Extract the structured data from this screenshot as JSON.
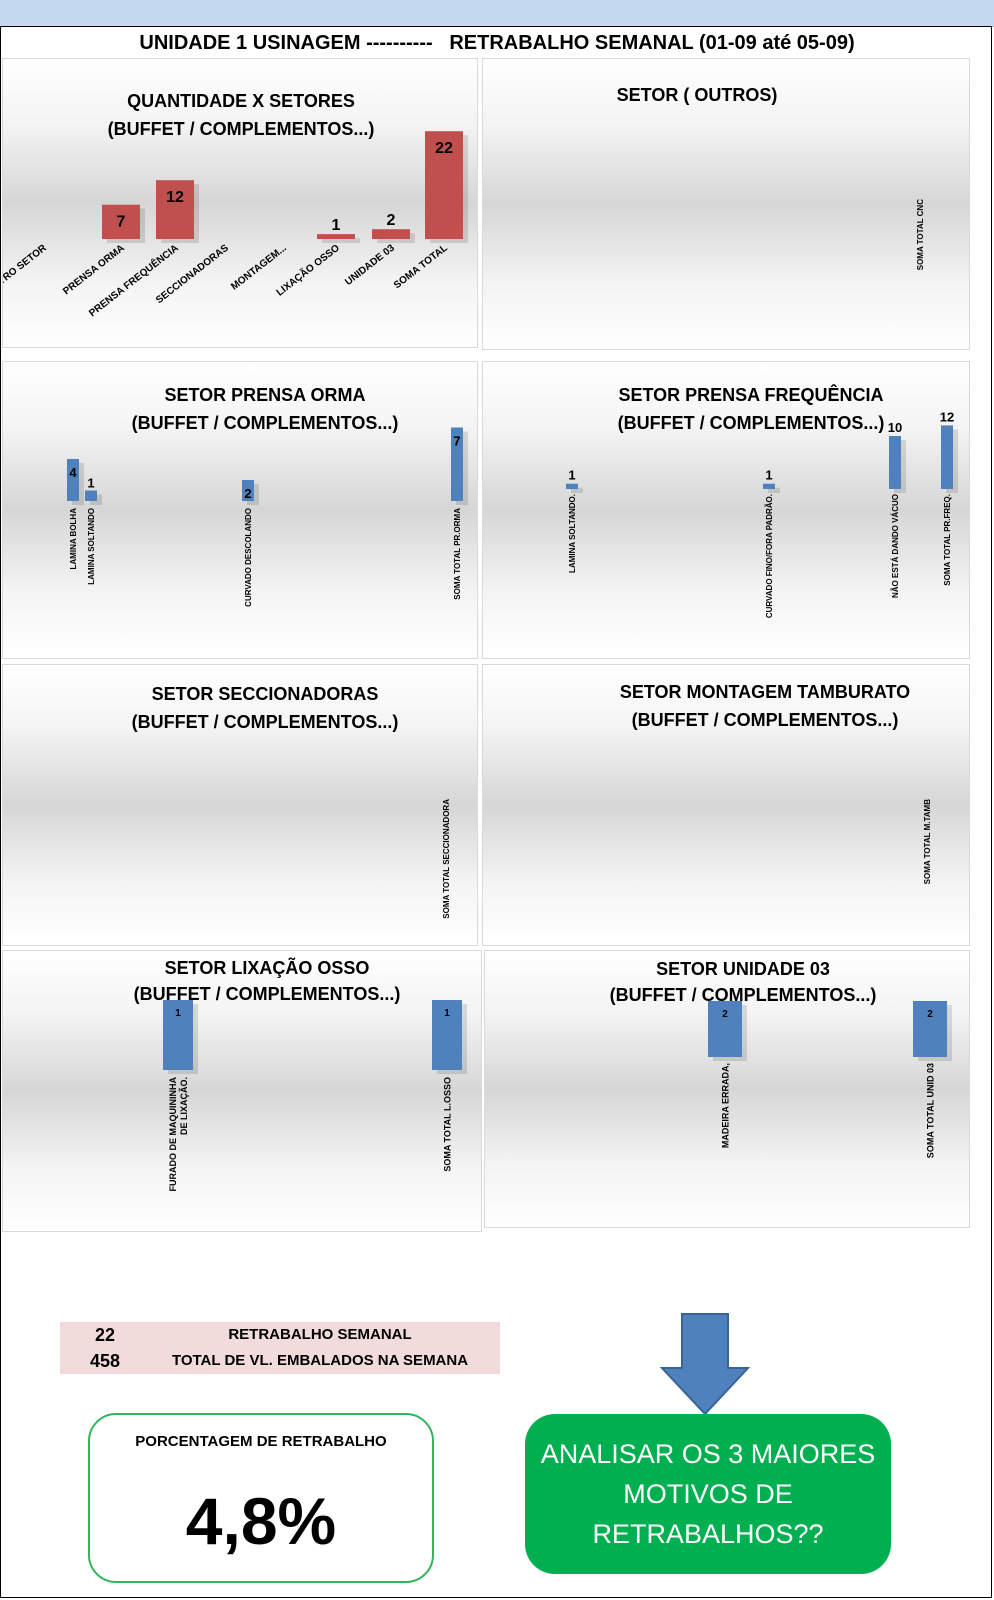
{
  "header": {
    "title": "UNIDADE 1 USINAGEM ----------   RETRABALHO SEMANAL (01-09 até 05-09)"
  },
  "colors": {
    "red_bar": "#c0504d",
    "blue_bar": "#4f81bd",
    "cta_green": "#00b050",
    "summary_bg": "#f2dcdb",
    "arrow": "#4f81bd"
  },
  "chart_data": [
    {
      "id": "quantidade_setores",
      "type": "bar",
      "title": [
        "QUANTIDADE X SETORES",
        "(BUFFET / COMPLEMENTOS...)"
      ],
      "categories": [
        "OUTRO SETOR",
        "PRENSA ORMA",
        "PRENSA FREQUÊNCIA",
        "SECCIONADORAS",
        "MONTAGEM...",
        "LIXAÇÃO OSSO",
        "UNIDADE 03",
        "SOMA TOTAL"
      ],
      "values": [
        null,
        7,
        12,
        null,
        null,
        1,
        2,
        22
      ],
      "data_labels": [
        "",
        "7",
        "12",
        "",
        "",
        "1",
        "2",
        "22"
      ],
      "color": "red"
    },
    {
      "id": "setor_outros",
      "type": "bar",
      "title": [
        "SETOR ( OUTROS)"
      ],
      "categories": [
        "SOMA TOTAL CNC"
      ],
      "values": [
        null
      ],
      "data_labels": [
        ""
      ],
      "color": "blue"
    },
    {
      "id": "setor_prensa_orma",
      "type": "bar",
      "title": [
        "SETOR PRENSA ORMA",
        "(BUFFET / COMPLEMENTOS...)"
      ],
      "categories": [
        "LAMINA BOLHA",
        "LAMINA SOLTANDO",
        "CURVADO DESCOLANDO",
        "SOMA TOTAL PR.ORMA"
      ],
      "values": [
        4,
        1,
        2,
        7
      ],
      "data_labels": [
        "4",
        "1",
        "2",
        "7"
      ],
      "color": "blue"
    },
    {
      "id": "setor_prensa_frequencia",
      "type": "bar",
      "title": [
        "SETOR PRENSA FREQUÊNCIA",
        "(BUFFET / COMPLEMENTOS...)"
      ],
      "categories": [
        "LAMINA SOLTANDO.",
        "CURVADO FINO/FORA PADRÃO.",
        "NÃO ESTÁ DANDO VÁCUO",
        "SOMA TOTAL PR.FREQ."
      ],
      "values": [
        1,
        1,
        10,
        12
      ],
      "data_labels": [
        "1",
        "1",
        "10",
        "12"
      ],
      "color": "blue"
    },
    {
      "id": "setor_seccionadoras",
      "type": "bar",
      "title": [
        "SETOR SECCIONADORAS",
        "(BUFFET / COMPLEMENTOS...)"
      ],
      "categories": [
        "SOMA TOTAL SECCIONADORA"
      ],
      "values": [
        null
      ],
      "data_labels": [
        ""
      ],
      "color": "blue"
    },
    {
      "id": "setor_montagem_tamburato",
      "type": "bar",
      "title": [
        "SETOR MONTAGEM TAMBURATO",
        "(BUFFET / COMPLEMENTOS...)"
      ],
      "categories": [
        "SOMA TOTAL M.TAMB"
      ],
      "values": [
        null
      ],
      "data_labels": [
        ""
      ],
      "color": "blue"
    },
    {
      "id": "setor_lixacao_osso",
      "type": "bar",
      "title": [
        "SETOR LIXAÇÃO OSSO",
        "(BUFFET / COMPLEMENTOS...)"
      ],
      "categories": [
        [
          "FURADO DE MAQUININHA",
          "DE LIXAÇÃO."
        ],
        [
          "SOMA TOTAL L.OSSO"
        ]
      ],
      "values": [
        1,
        1
      ],
      "data_labels": [
        "1",
        "1"
      ],
      "color": "blue"
    },
    {
      "id": "setor_unidade_03",
      "type": "bar",
      "title": [
        "SETOR UNIDADE 03",
        "(BUFFET / COMPLEMENTOS...)"
      ],
      "categories": [
        [
          "MADEIRA ERRADA,"
        ],
        [
          "SOMA TOTAL UNID 03"
        ]
      ],
      "values": [
        2,
        2
      ],
      "data_labels": [
        "2",
        "2"
      ],
      "color": "blue"
    }
  ],
  "summary": {
    "rows": [
      {
        "value": "22",
        "label": "RETRABALHO SEMANAL"
      },
      {
        "value": "458",
        "label": "TOTAL DE VL. EMBALADOS NA SEMANA"
      }
    ]
  },
  "percentage": {
    "label": "PORCENTAGEM DE RETRABALHO",
    "value": "4,8%"
  },
  "cta": {
    "lines": [
      "ANALISAR OS 3 MAIORES",
      "MOTIVOS DE",
      "RETRABALHOS??"
    ]
  }
}
